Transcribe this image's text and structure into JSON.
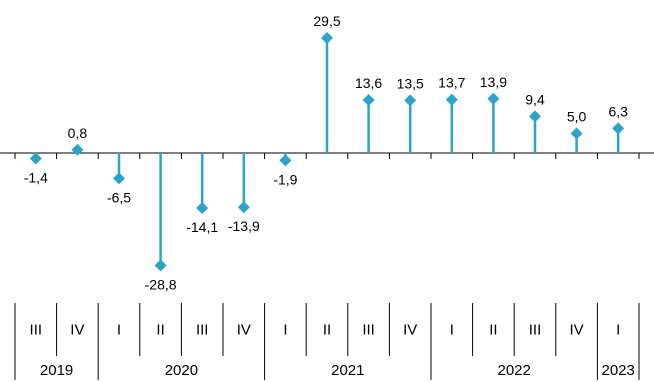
{
  "chart_data": {
    "type": "stem",
    "categories": [
      "III",
      "IV",
      "I",
      "II",
      "III",
      "IV",
      "I",
      "II",
      "III",
      "IV",
      "I",
      "II",
      "III",
      "IV",
      "I"
    ],
    "years": [
      {
        "label": "2019",
        "span": 2
      },
      {
        "label": "2020",
        "span": 4
      },
      {
        "label": "2021",
        "span": 4
      },
      {
        "label": "2022",
        "span": 4
      },
      {
        "label": "2023",
        "span": 1
      }
    ],
    "values": [
      -1.4,
      0.8,
      -6.5,
      -28.8,
      -14.1,
      -13.9,
      -1.9,
      29.5,
      13.6,
      13.5,
      13.7,
      13.9,
      9.4,
      5.0,
      6.3
    ],
    "value_labels": [
      "-1,4",
      "0,8",
      "-6,5",
      "-28,8",
      "-14,1",
      "-13,9",
      "-1,9",
      "29,5",
      "13,6",
      "13,5",
      "13,7",
      "13,9",
      "9,4",
      "5,0",
      "6,3"
    ],
    "color": "#2aa4cf",
    "grid": false
  }
}
